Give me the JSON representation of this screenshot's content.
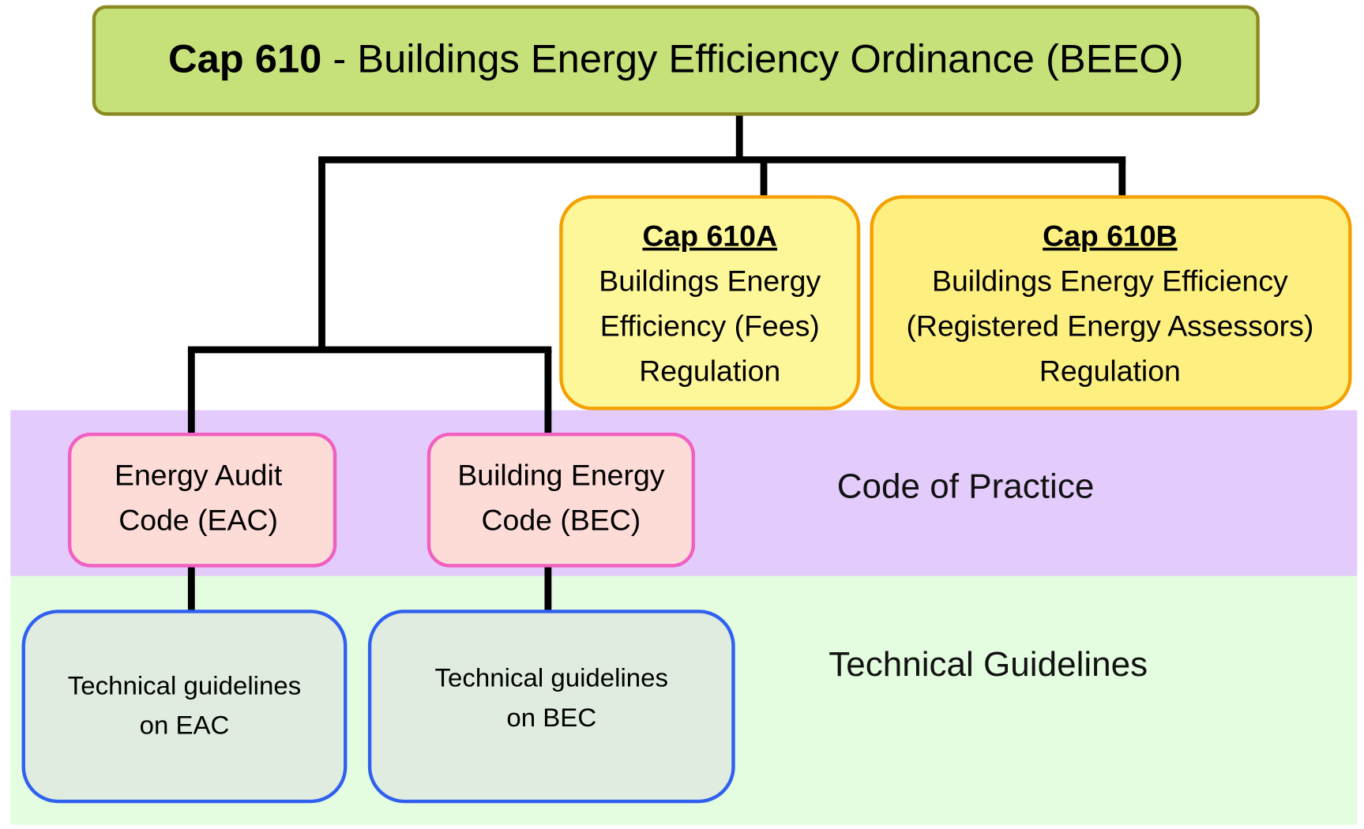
{
  "root": {
    "code": "Cap 610",
    "name": " - Buildings Energy Efficiency Ordinance (BEEO)"
  },
  "regulations": [
    {
      "code": "Cap 610A",
      "lines": [
        "Buildings Energy",
        "Efficiency (Fees)",
        "Regulation"
      ]
    },
    {
      "code": "Cap 610B",
      "lines": [
        "Buildings Energy Efficiency",
        "(Registered Energy Assessors)",
        "Regulation"
      ]
    }
  ],
  "codes": [
    {
      "lines": [
        "Energy Audit",
        "Code (EAC)"
      ]
    },
    {
      "lines": [
        "Building Energy",
        "Code (BEC)"
      ]
    }
  ],
  "guidelines": [
    {
      "lines": [
        "Technical guidelines",
        "on EAC"
      ]
    },
    {
      "lines": [
        "Technical guidelines",
        "on BEC"
      ]
    }
  ],
  "bands": [
    "Code of Practice",
    "Technical Guidelines"
  ]
}
